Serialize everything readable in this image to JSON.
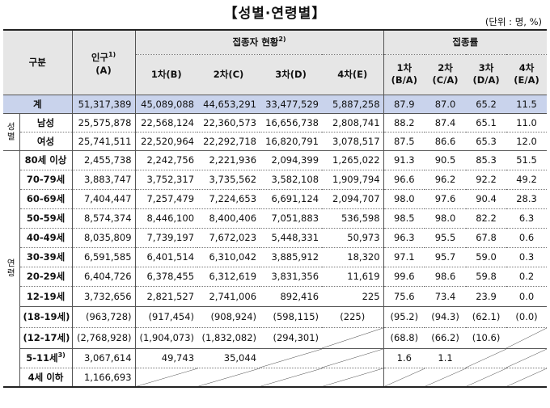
{
  "title": "【성별·연령별】",
  "unit": "(단위 : 명, %)",
  "headers": {
    "category": "구분",
    "population_line1": "인구",
    "population_sup": "1)",
    "population_line2": "(A)",
    "vaccinated": "접종자 현황",
    "vaccinated_sup": "2)",
    "rate": "접종률",
    "dose1": "1차(B)",
    "dose2": "2차(C)",
    "dose3": "3차(D)",
    "dose4": "4차(E)",
    "r1a": "1차",
    "r1b": "(B/A)",
    "r2a": "2차",
    "r2b": "(C/A)",
    "r3a": "3차",
    "r3b": "(D/A)",
    "r4a": "4차",
    "r4b": "(E/A)"
  },
  "groups": {
    "sex": "성별",
    "age": "연령"
  },
  "total": {
    "label": "계",
    "pop": "51,317,389",
    "d1": "45,089,088",
    "d2": "44,653,291",
    "d3": "33,477,529",
    "d4": "5,887,258",
    "r1": "87.9",
    "r2": "87.0",
    "r3": "65.2",
    "r4": "11.5"
  },
  "sex_rows": [
    {
      "label": "남성",
      "pop": "25,575,878",
      "d1": "22,568,124",
      "d2": "22,360,573",
      "d3": "16,656,738",
      "d4": "2,808,741",
      "r1": "88.2",
      "r2": "87.4",
      "r3": "65.1",
      "r4": "11.0"
    },
    {
      "label": "여성",
      "pop": "25,741,511",
      "d1": "22,520,964",
      "d2": "22,292,718",
      "d3": "16,820,791",
      "d4": "3,078,517",
      "r1": "87.5",
      "r2": "86.6",
      "r3": "65.3",
      "r4": "12.0"
    }
  ],
  "age_rows": [
    {
      "label": "80세 이상",
      "pop": "2,455,738",
      "d1": "2,242,756",
      "d2": "2,221,936",
      "d3": "2,094,399",
      "d4": "1,265,022",
      "r1": "91.3",
      "r2": "90.5",
      "r3": "85.3",
      "r4": "51.5"
    },
    {
      "label": "70-79세",
      "pop": "3,883,747",
      "d1": "3,752,317",
      "d2": "3,735,562",
      "d3": "3,582,108",
      "d4": "1,909,794",
      "r1": "96.6",
      "r2": "96.2",
      "r3": "92.2",
      "r4": "49.2"
    },
    {
      "label": "60-69세",
      "pop": "7,404,447",
      "d1": "7,257,479",
      "d2": "7,224,653",
      "d3": "6,691,124",
      "d4": "2,094,707",
      "r1": "98.0",
      "r2": "97.6",
      "r3": "90.4",
      "r4": "28.3"
    },
    {
      "label": "50-59세",
      "pop": "8,574,374",
      "d1": "8,446,100",
      "d2": "8,400,406",
      "d3": "7,051,883",
      "d4": "536,598",
      "r1": "98.5",
      "r2": "98.0",
      "r3": "82.2",
      "r4": "6.3"
    },
    {
      "label": "40-49세",
      "pop": "8,035,809",
      "d1": "7,739,197",
      "d2": "7,672,023",
      "d3": "5,448,331",
      "d4": "50,973",
      "r1": "96.3",
      "r2": "95.5",
      "r3": "67.8",
      "r4": "0.6"
    },
    {
      "label": "30-39세",
      "pop": "6,591,585",
      "d1": "6,401,514",
      "d2": "6,310,042",
      "d3": "3,885,912",
      "d4": "18,320",
      "r1": "97.1",
      "r2": "95.7",
      "r3": "59.0",
      "r4": "0.3"
    },
    {
      "label": "20-29세",
      "pop": "6,404,726",
      "d1": "6,378,455",
      "d2": "6,312,619",
      "d3": "3,831,356",
      "d4": "11,619",
      "r1": "99.6",
      "r2": "98.6",
      "r3": "59.8",
      "r4": "0.2"
    },
    {
      "label": "12-19세",
      "pop": "3,732,656",
      "d1": "2,821,527",
      "d2": "2,741,006",
      "d3": "892,416",
      "d4": "225",
      "r1": "75.6",
      "r2": "73.4",
      "r3": "23.9",
      "r4": "0.0"
    }
  ],
  "sub_rows": [
    {
      "label": "(18-19세)",
      "pop": "(963,728)",
      "d1": "(917,454)",
      "d2": "(908,924)",
      "d3": "(598,115)",
      "d4": "(225)",
      "r1": "(95.2)",
      "r2": "(94.3)",
      "r3": "(62.1)",
      "r4": "(0.0)"
    },
    {
      "label": "(12-17세)",
      "pop": "(2,768,928)",
      "d1": "(1,904,073)",
      "d2": "(1,832,082)",
      "d3": "(294,301)",
      "r1": "(68.8)",
      "r2": "(66.2)",
      "r3": "(10.6)"
    }
  ],
  "child_rows": [
    {
      "label": "5-11세",
      "sup": "3)",
      "pop": "3,067,614",
      "d1": "49,743",
      "d2": "35,044",
      "r1": "1.6",
      "r2": "1.1"
    },
    {
      "label": "4세 이하",
      "pop": "1,166,693"
    }
  ]
}
